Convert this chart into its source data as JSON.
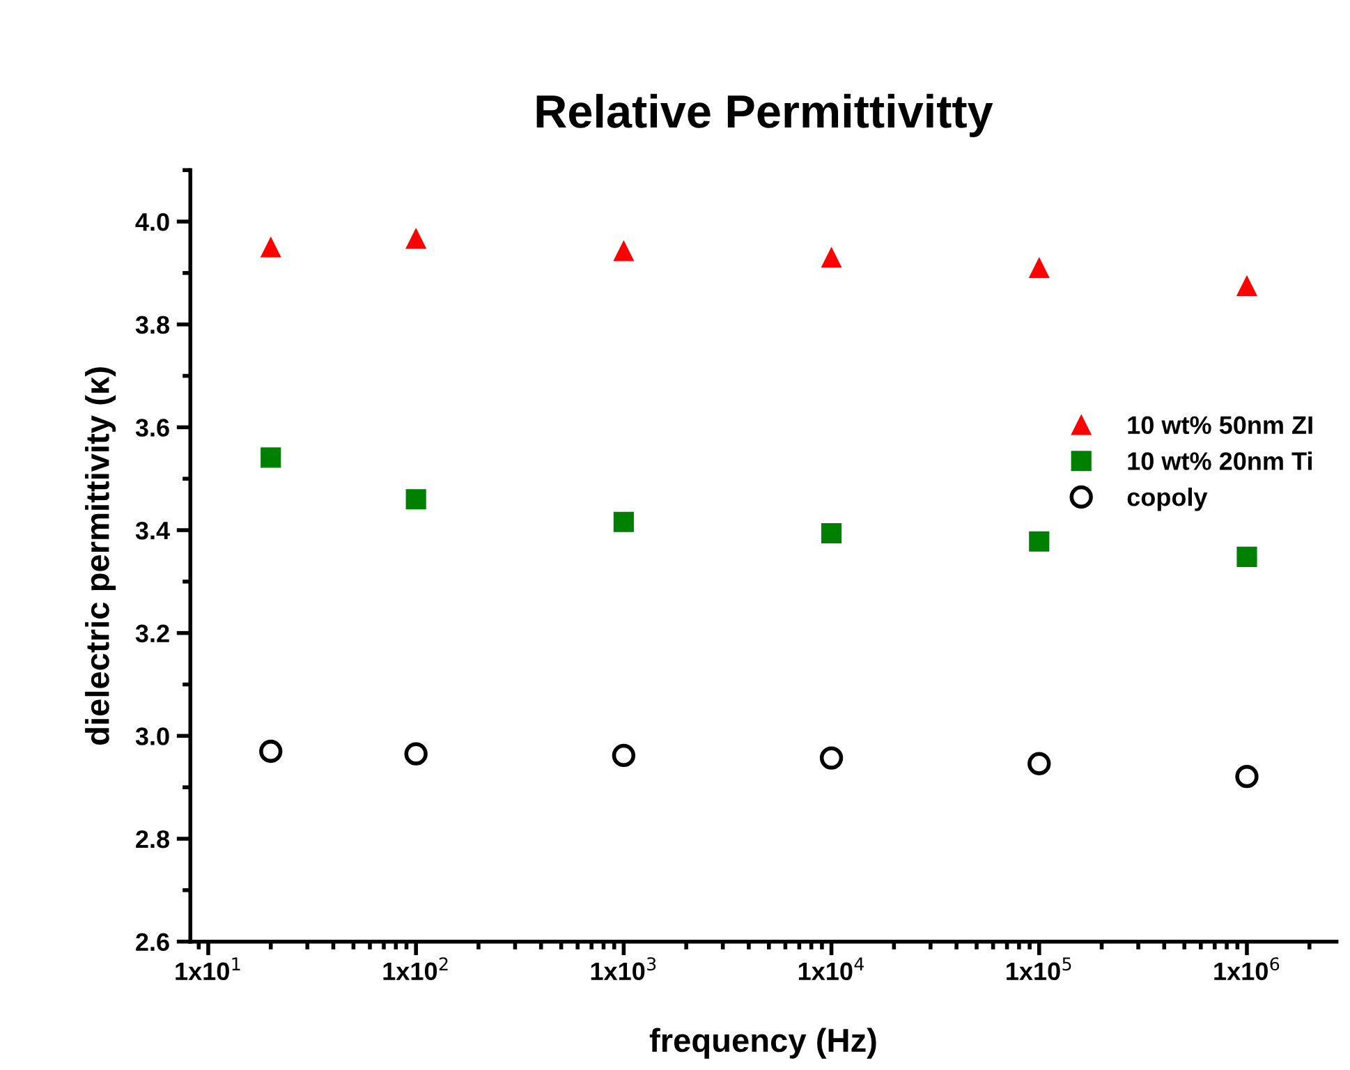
{
  "chart_data": {
    "type": "scatter",
    "title": "Relative Permittivitty",
    "xlabel": "frequency (Hz)",
    "ylabel": "dielectric permittivity (κ)",
    "log": "x",
    "x": [
      20,
      100,
      1000,
      10000,
      100000,
      1000000
    ],
    "series": [
      {
        "name": "10 wt% 50nm ZI",
        "color": "#ff0000",
        "marker": "triangle",
        "values": [
          3.95,
          3.967,
          3.943,
          3.93,
          3.91,
          3.875
        ]
      },
      {
        "name": "10 wt% 20nm Ti",
        "color": "#008000",
        "marker": "square",
        "values": [
          3.541,
          3.46,
          3.416,
          3.394,
          3.378,
          3.348
        ]
      },
      {
        "name": "copoly",
        "color": "#000000",
        "marker": "circle",
        "values": [
          2.97,
          2.965,
          2.962,
          2.957,
          2.946,
          2.921
        ]
      }
    ],
    "xlim": [
      8.2,
      2700000
    ],
    "ylim": [
      2.6,
      4.1
    ],
    "xticks": [
      {
        "value": 10,
        "label": "1x10$^{1}$"
      },
      {
        "value": 100,
        "label": "1x10$^{2}$"
      },
      {
        "value": 1000,
        "label": "1x10$^{3}$"
      },
      {
        "value": 10000,
        "label": "1x10$^{4}$"
      },
      {
        "value": 100000,
        "label": "1x10$^{5}$"
      },
      {
        "value": 1000000,
        "label": "1x10$^{6}$"
      }
    ],
    "yticks": [
      {
        "value": 2.6,
        "label": "2.6"
      },
      {
        "value": 2.8,
        "label": "2.8"
      },
      {
        "value": 3.0,
        "label": "3.0"
      },
      {
        "value": 3.2,
        "label": "3.2"
      },
      {
        "value": 3.4,
        "label": "3.4"
      },
      {
        "value": 3.6,
        "label": "3.6"
      },
      {
        "value": 3.8,
        "label": "3.8"
      },
      {
        "value": 4.0,
        "label": "4.0"
      }
    ],
    "grid": false,
    "legend": "right"
  }
}
